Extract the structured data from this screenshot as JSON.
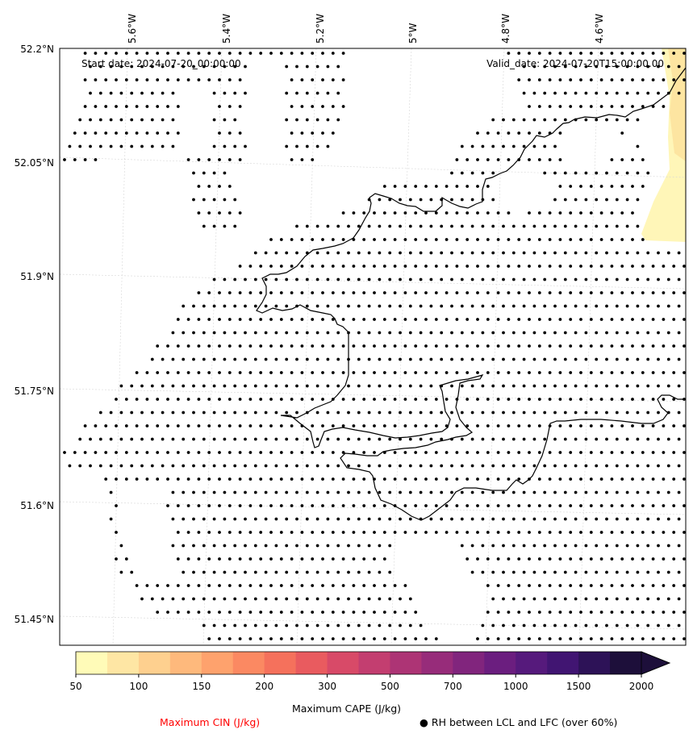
{
  "map": {
    "start_date_label": "Start date: 2024-07-20_00:00:00",
    "valid_date_label": "Valid_date: 2024-07-20T15:00:00.00",
    "lon_labels": [
      "5.6°W",
      "5.4°W",
      "5.2°W",
      "5°W",
      "4.8°W",
      "4.6°W"
    ],
    "lat_labels": [
      "52.2°N",
      "52.05°N",
      "51.9°N",
      "51.75°N",
      "51.6°N",
      "51.45°N"
    ],
    "colors": {
      "coastline": "#000000",
      "gridline": "#d0d0d0",
      "dot": "#000000",
      "cin_label": "#ff0000"
    }
  },
  "colorbar": {
    "title": "Maximum CAPE (J/kg)",
    "ticks": [
      "50",
      "100",
      "150",
      "200",
      "300",
      "500",
      "700",
      "1000",
      "1500",
      "2000"
    ],
    "colors": [
      "#fffbb8",
      "#fee6a4",
      "#fed08f",
      "#feb97c",
      "#fea26d",
      "#fb8962",
      "#f5715c",
      "#e95b5f",
      "#d84a68",
      "#c33e70",
      "#ad3475",
      "#972c7a",
      "#81257d",
      "#6b1e7f",
      "#561a7c",
      "#411572",
      "#2d1257",
      "#1d0f3a"
    ],
    "extend": "max"
  },
  "legend": {
    "cin_label": "Maximum CIN (J/kg)",
    "rh_symbol": "●",
    "rh_label": "RH between LCL and LFC (over 60%)"
  }
}
